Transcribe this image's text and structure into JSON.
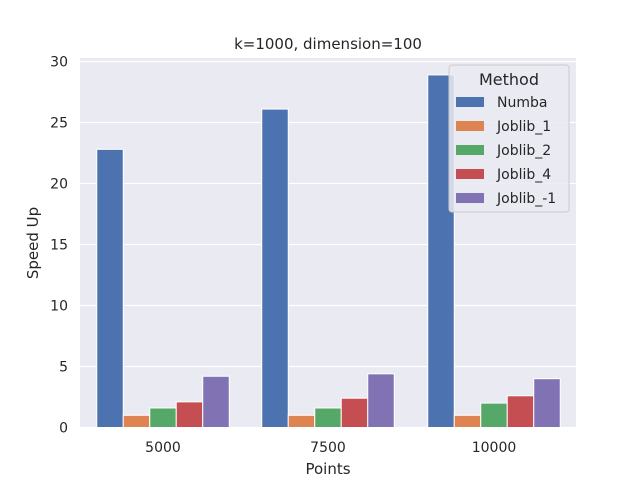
{
  "chart_data": {
    "type": "bar",
    "title": "k=1000, dimension=100",
    "xlabel": "Points",
    "ylabel": "Speed Up",
    "categories": [
      "5000",
      "7500",
      "10000"
    ],
    "ylim": [
      0,
      30
    ],
    "yticks": [
      "0",
      "5",
      "10",
      "15",
      "20",
      "25",
      "30"
    ],
    "grid": true,
    "legend": {
      "title": "Method",
      "placement": "top-right"
    },
    "series": [
      {
        "name": "Numba",
        "color": "#4c72b0",
        "values": [
          22.8,
          26.1,
          28.9
        ]
      },
      {
        "name": "Joblib_1",
        "color": "#dd8452",
        "values": [
          1.0,
          1.0,
          1.0
        ]
      },
      {
        "name": "Joblib_2",
        "color": "#55a868",
        "values": [
          1.6,
          1.6,
          2.0
        ]
      },
      {
        "name": "Joblib_4",
        "color": "#c44e52",
        "values": [
          2.1,
          2.4,
          2.6
        ]
      },
      {
        "name": "Joblib_-1",
        "color": "#8172b3",
        "values": [
          4.2,
          4.4,
          4.0
        ]
      }
    ]
  }
}
